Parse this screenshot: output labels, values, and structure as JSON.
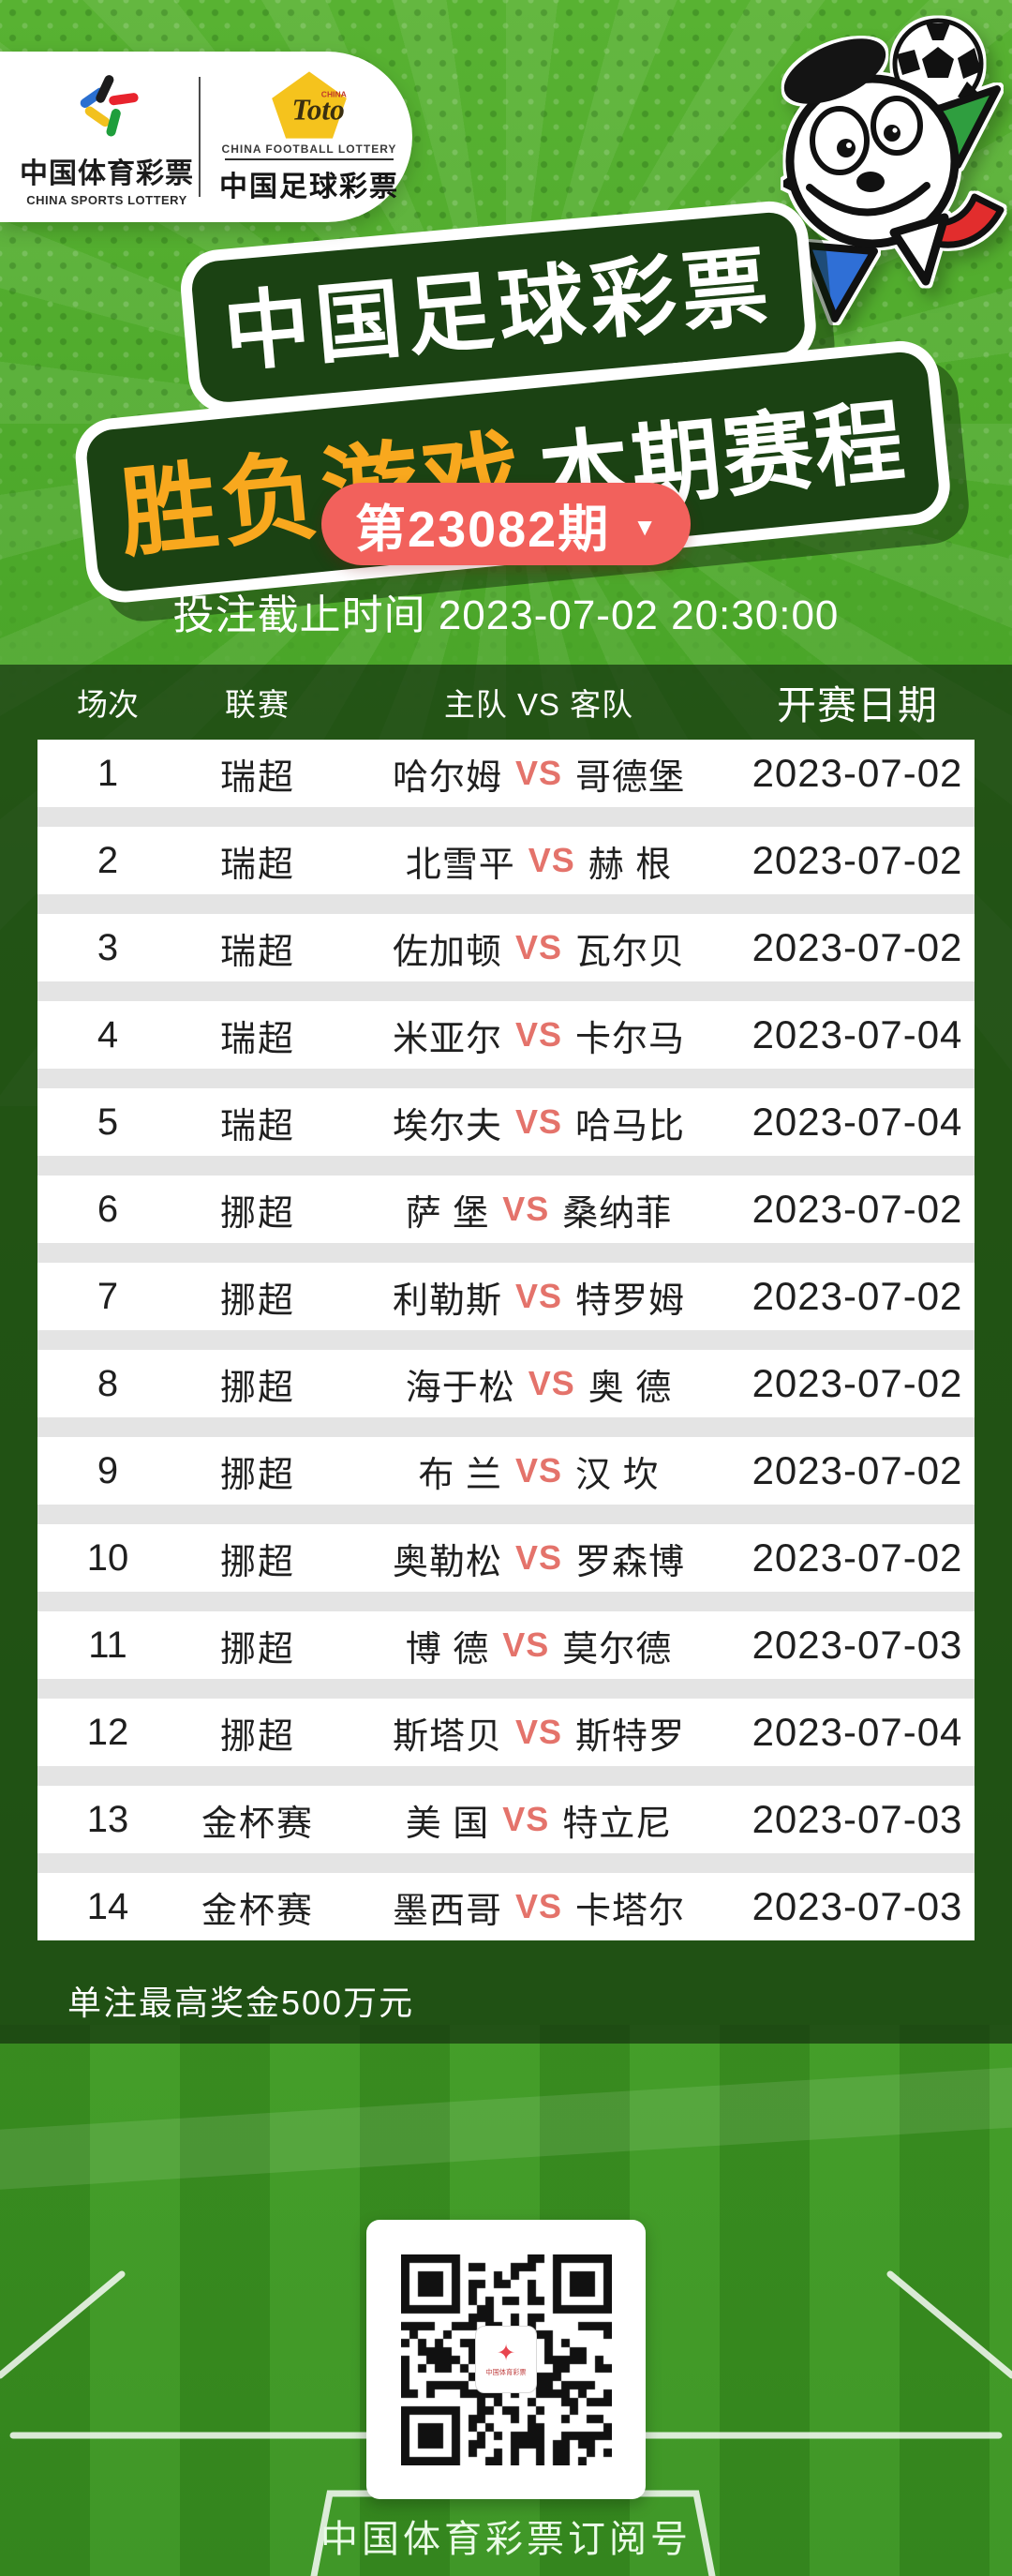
{
  "logo_card": {
    "csl": {
      "name_cn": "中国体育彩票",
      "name_en": "CHINA SPORTS LOTTERY"
    },
    "toto": {
      "brand": "Toto",
      "country": "CHINA",
      "name_en": "CHINA FOOTBALL LOTTERY",
      "name_cn": "中国足球彩票"
    }
  },
  "title": {
    "line1": "中国足球彩票",
    "line2_highlight": "胜负游戏",
    "line2_rest": "本期赛程"
  },
  "period": {
    "label": "第23082期"
  },
  "deadline": "投注截止时间 2023-07-02 20:30:00",
  "table": {
    "columns": [
      "场次",
      "联赛",
      "主队 VS 客队",
      "开赛日期"
    ],
    "vs_label": "VS",
    "rows": [
      {
        "no": "1",
        "league": "瑞超",
        "home": "哈尔姆",
        "away": "哥德堡",
        "date": "2023-07-02"
      },
      {
        "no": "2",
        "league": "瑞超",
        "home": "北雪平",
        "away": "赫 根",
        "date": "2023-07-02"
      },
      {
        "no": "3",
        "league": "瑞超",
        "home": "佐加顿",
        "away": "瓦尔贝",
        "date": "2023-07-02"
      },
      {
        "no": "4",
        "league": "瑞超",
        "home": "米亚尔",
        "away": "卡尔马",
        "date": "2023-07-04"
      },
      {
        "no": "5",
        "league": "瑞超",
        "home": "埃尔夫",
        "away": "哈马比",
        "date": "2023-07-04"
      },
      {
        "no": "6",
        "league": "挪超",
        "home": "萨 堡",
        "away": "桑纳菲",
        "date": "2023-07-02"
      },
      {
        "no": "7",
        "league": "挪超",
        "home": "利勒斯",
        "away": "特罗姆",
        "date": "2023-07-02"
      },
      {
        "no": "8",
        "league": "挪超",
        "home": "海于松",
        "away": "奥 德",
        "date": "2023-07-02"
      },
      {
        "no": "9",
        "league": "挪超",
        "home": "布 兰",
        "away": "汉 坎",
        "date": "2023-07-02"
      },
      {
        "no": "10",
        "league": "挪超",
        "home": "奥勒松",
        "away": "罗森博",
        "date": "2023-07-02"
      },
      {
        "no": "11",
        "league": "挪超",
        "home": "博 德",
        "away": "莫尔德",
        "date": "2023-07-03"
      },
      {
        "no": "12",
        "league": "挪超",
        "home": "斯塔贝",
        "away": "斯特罗",
        "date": "2023-07-04"
      },
      {
        "no": "13",
        "league": "金杯赛",
        "home": "美 国",
        "away": "特立尼",
        "date": "2023-07-03"
      },
      {
        "no": "14",
        "league": "金杯赛",
        "home": "墨西哥",
        "away": "卡塔尔",
        "date": "2023-07-03"
      }
    ]
  },
  "notes": {
    "max_prize": "单注最高奖金500万元"
  },
  "qr": {
    "caption": "中国体育彩票订阅号",
    "logo_star": "✦",
    "logo_text": "中国体育彩票"
  },
  "icons": {
    "dropdown_arrow": "▼",
    "football": "soccer-ball",
    "mascot": "star-mascot"
  },
  "colors": {
    "accent_red": "#f2615c",
    "vs_red": "#e4736b",
    "title_orange": "#f8a81e",
    "plate_green": "#1b4213",
    "bg_green_top": "#58b232",
    "bg_green_mid": "#46a226",
    "field_green": "#3a9421",
    "overlay_dark": "rgba(17,45,13,0.68)",
    "separator": "#e4e4e4",
    "row_text": "#1f1f1f",
    "caption_green": "#eafbe7"
  }
}
